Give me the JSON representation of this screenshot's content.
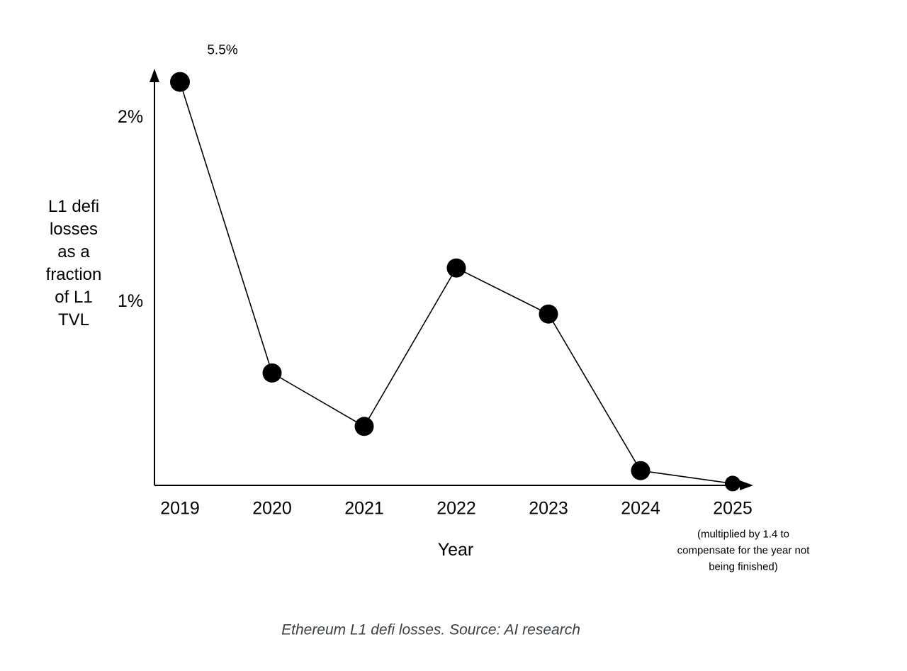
{
  "figure": {
    "caption": "Ethereum L1 defi losses. Source: AI research"
  },
  "chart_data": {
    "type": "line",
    "title": "",
    "xlabel": "Year",
    "ylabel": "L1 defi losses as a fraction of L1 TVL",
    "ylabel_lines": [
      "L1 defi",
      "losses",
      "as a",
      "fraction",
      "of L1",
      "TVL"
    ],
    "categories": [
      "2019",
      "2020",
      "2021",
      "2022",
      "2023",
      "2024",
      "2025"
    ],
    "series": [
      {
        "name": "L1 defi losses as a fraction of L1 TVL",
        "values_percent": [
          5.5,
          0.61,
          0.32,
          1.18,
          0.93,
          0.08,
          0.01
        ],
        "plotted_percent": [
          2.19,
          0.61,
          0.32,
          1.18,
          0.93,
          0.08,
          0.01
        ]
      }
    ],
    "annotation": {
      "text": "5.5%",
      "target_category": "2019"
    },
    "yticks": [
      {
        "label": "2%",
        "value": 2
      },
      {
        "label": "1%",
        "value": 1
      }
    ],
    "ylim": [
      0,
      2.25
    ],
    "grid": false,
    "legend": false,
    "axis_truncated_note": "2019 point drawn at top of truncated axis; labeled true value is 5.5%",
    "x_axis_note_lines": [
      "(multiplied by 1.4 to",
      "compensate for the year not",
      "being finished)"
    ],
    "x_axis_note": "(multiplied by 1.4 to compensate for the year not being finished)",
    "line_color": "#000000",
    "marker_color": "#000000",
    "text_color": "#000000",
    "caption_color": "#3c4043"
  }
}
